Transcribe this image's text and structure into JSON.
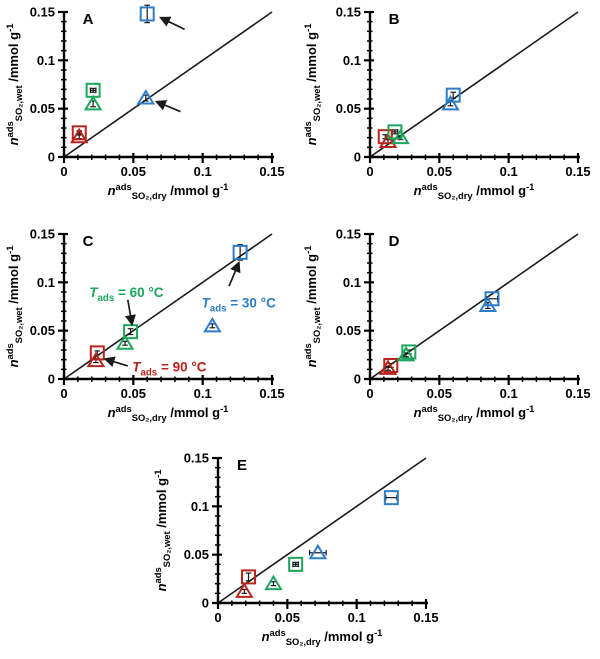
{
  "figure": {
    "background": "#ffffff",
    "colors": {
      "red": "#b9231d",
      "green": "#1aa65c",
      "blue": "#2c7cc9",
      "axis": "#000000",
      "ink": "#1a1a1a"
    },
    "axis": {
      "xlim": [
        0,
        0.15
      ],
      "ylim": [
        0,
        0.15
      ],
      "major_ticks": [
        0,
        0.05,
        0.1,
        0.15
      ],
      "tick_labels": [
        "0",
        "0.05",
        "0.1",
        "0.15"
      ],
      "minor_step": 0.01,
      "grid": false,
      "xlabel_parts": [
        {
          "t": "n",
          "style": "bi"
        },
        {
          "t": "ads",
          "style": "sup"
        },
        {
          "t": "SO₂,dry",
          "style": "sub"
        },
        {
          "t": " /mmol g",
          "style": "b"
        },
        {
          "t": "-1",
          "style": "sup"
        }
      ],
      "ylabel_parts": [
        {
          "t": "n",
          "style": "bi"
        },
        {
          "t": "ads",
          "style": "sup"
        },
        {
          "t": "SO₂,wet",
          "style": "sub"
        },
        {
          "t": " /mmol g",
          "style": "b"
        },
        {
          "t": "-1",
          "style": "sup"
        }
      ]
    },
    "temperature_series": [
      {
        "series": "blue",
        "label": "Tads = 30 °C"
      },
      {
        "series": "green",
        "label": "Tads = 60 °C"
      },
      {
        "series": "red",
        "label": "Tads = 90 °C"
      }
    ]
  },
  "chart_data": [
    {
      "type": "scatter",
      "panel": "A",
      "identity_line": true,
      "points": [
        {
          "marker": "triangle",
          "color": "red",
          "x": 0.011,
          "y": 0.021,
          "ey": 0.002
        },
        {
          "marker": "square",
          "color": "red",
          "x": 0.011,
          "y": 0.025,
          "ex": 0.001,
          "ey": 0.002
        },
        {
          "marker": "triangle",
          "color": "green",
          "x": 0.021,
          "y": 0.055,
          "ey": 0.003
        },
        {
          "marker": "square",
          "color": "green",
          "x": 0.021,
          "y": 0.069,
          "ex": 0.002,
          "ey": 0.002
        },
        {
          "marker": "triangle",
          "color": "blue",
          "x": 0.059,
          "y": 0.061,
          "ey": 0.003
        },
        {
          "marker": "square",
          "color": "blue",
          "x": 0.06,
          "y": 0.148,
          "ey": 0.009
        }
      ],
      "arrows": [
        {
          "x1": 0.087,
          "y1": 0.132,
          "x2": 0.07,
          "y2": 0.144
        },
        {
          "x1": 0.084,
          "y1": 0.047,
          "x2": 0.067,
          "y2": 0.057
        }
      ],
      "labels": []
    },
    {
      "type": "scatter",
      "panel": "B",
      "identity_line": true,
      "points": [
        {
          "marker": "triangle",
          "color": "red",
          "x": 0.013,
          "y": 0.016,
          "ey": 0.002
        },
        {
          "marker": "square",
          "color": "red",
          "x": 0.011,
          "y": 0.021,
          "ey": 0.002
        },
        {
          "marker": "triangle",
          "color": "green",
          "x": 0.022,
          "y": 0.02,
          "ey": 0.002
        },
        {
          "marker": "square",
          "color": "green",
          "x": 0.018,
          "y": 0.026,
          "ex": 0.002,
          "ey": 0.002
        },
        {
          "marker": "triangle",
          "color": "blue",
          "x": 0.058,
          "y": 0.055,
          "ey": 0.002
        },
        {
          "marker": "square",
          "color": "blue",
          "x": 0.06,
          "y": 0.064,
          "ey": 0.003
        }
      ],
      "arrows": [],
      "labels": []
    },
    {
      "type": "scatter",
      "panel": "C",
      "identity_line": true,
      "points": [
        {
          "marker": "triangle",
          "color": "red",
          "x": 0.023,
          "y": 0.019,
          "ey": 0.002
        },
        {
          "marker": "square",
          "color": "red",
          "x": 0.024,
          "y": 0.027,
          "ey": 0.002
        },
        {
          "marker": "triangle",
          "color": "green",
          "x": 0.044,
          "y": 0.037,
          "ey": 0.002
        },
        {
          "marker": "square",
          "color": "green",
          "x": 0.048,
          "y": 0.049,
          "ey": 0.003
        },
        {
          "marker": "triangle",
          "color": "blue",
          "x": 0.107,
          "y": 0.055,
          "ey": 0.002
        },
        {
          "marker": "square",
          "color": "blue",
          "x": 0.127,
          "y": 0.131,
          "ey": 0.008
        }
      ],
      "arrows": [
        {
          "x1": 0.046,
          "y1": 0.082,
          "x2": 0.049,
          "y2": 0.057
        },
        {
          "x1": 0.119,
          "y1": 0.096,
          "x2": 0.126,
          "y2": 0.12
        },
        {
          "x1": 0.046,
          "y1": 0.0135,
          "x2": 0.03,
          "y2": 0.0205
        }
      ],
      "labels": [
        {
          "series": "green",
          "x": 0.045,
          "y": 0.085,
          "parts": [
            {
              "t": "T",
              "style": "bi"
            },
            {
              "t": "ads",
              "style": "sub"
            },
            {
              "t": " = 60 °C",
              "style": "b"
            }
          ]
        },
        {
          "series": "blue",
          "x": 0.126,
          "y": 0.074,
          "parts": [
            {
              "t": "T",
              "style": "bi"
            },
            {
              "t": "ads",
              "style": "sub"
            },
            {
              "t": " = 30 °C",
              "style": "b"
            }
          ]
        },
        {
          "series": "red",
          "x": 0.076,
          "y": 0.008,
          "parts": [
            {
              "t": "T",
              "style": "bi"
            },
            {
              "t": "ads",
              "style": "sub"
            },
            {
              "t": " = 90 °C",
              "style": "b"
            }
          ]
        }
      ]
    },
    {
      "type": "scatter",
      "panel": "D",
      "identity_line": true,
      "points": [
        {
          "marker": "triangle",
          "color": "red",
          "x": 0.013,
          "y": 0.011,
          "ey": 0.002
        },
        {
          "marker": "square",
          "color": "red",
          "x": 0.015,
          "y": 0.014,
          "ey": 0.002
        },
        {
          "marker": "triangle",
          "color": "green",
          "x": 0.026,
          "y": 0.025,
          "ey": 0.002
        },
        {
          "marker": "square",
          "color": "green",
          "x": 0.028,
          "y": 0.028,
          "ey": 0.002
        },
        {
          "marker": "triangle",
          "color": "blue",
          "x": 0.085,
          "y": 0.076,
          "ey": 0.003
        },
        {
          "marker": "square",
          "color": "blue",
          "x": 0.088,
          "y": 0.083,
          "ex": 0.004
        }
      ],
      "arrows": [],
      "labels": []
    },
    {
      "type": "scatter",
      "panel": "E",
      "identity_line": true,
      "points": [
        {
          "marker": "triangle",
          "color": "red",
          "x": 0.019,
          "y": 0.012,
          "ey": 0.002
        },
        {
          "marker": "square",
          "color": "red",
          "x": 0.022,
          "y": 0.027,
          "ey": 0.004
        },
        {
          "marker": "triangle",
          "color": "green",
          "x": 0.04,
          "y": 0.02,
          "ey": 0.002
        },
        {
          "marker": "square",
          "color": "green",
          "x": 0.056,
          "y": 0.04,
          "ex": 0.002,
          "ey": 0.002
        },
        {
          "marker": "triangle",
          "color": "blue",
          "x": 0.072,
          "y": 0.052,
          "ex": 0.006
        },
        {
          "marker": "square",
          "color": "blue",
          "x": 0.125,
          "y": 0.109,
          "ex": 0.004
        }
      ],
      "arrows": [],
      "labels": []
    }
  ]
}
